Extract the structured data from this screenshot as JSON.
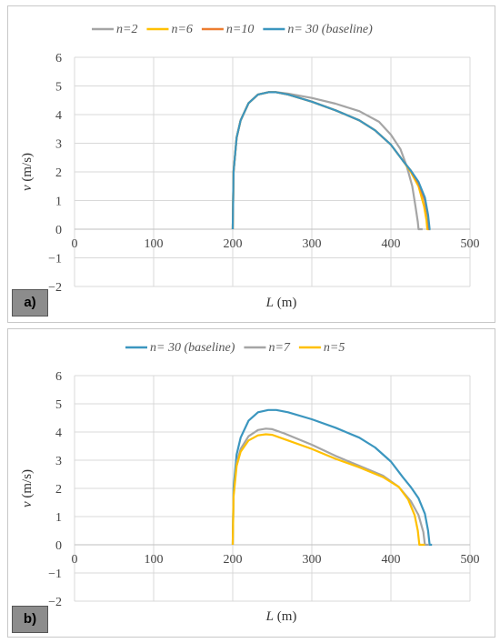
{
  "chart_data": [
    {
      "panel": "a)",
      "type": "line",
      "xlabel": "L (m)",
      "ylabel": "v (m/s)",
      "xlim": [
        0,
        500
      ],
      "ylim": [
        -2,
        6
      ],
      "x_ticks": [
        "0",
        "100",
        "200",
        "300",
        "400",
        "500"
      ],
      "y_ticks": [
        "6",
        "5",
        "4",
        "3",
        "2",
        "1",
        "0",
        "−1",
        "−2"
      ],
      "grid": true,
      "legend_position": "top",
      "series": [
        {
          "name": "n=2",
          "color": "#a5a5a5",
          "points": [
            [
              200,
              0
            ],
            [
              201,
              2.0
            ],
            [
              205,
              3.2
            ],
            [
              210,
              3.8
            ],
            [
              220,
              4.4
            ],
            [
              232,
              4.7
            ],
            [
              245,
              4.78
            ],
            [
              255,
              4.78
            ],
            [
              270,
              4.73
            ],
            [
              300,
              4.58
            ],
            [
              330,
              4.38
            ],
            [
              360,
              4.12
            ],
            [
              385,
              3.75
            ],
            [
              400,
              3.3
            ],
            [
              412,
              2.8
            ],
            [
              420,
              2.2
            ],
            [
              427,
              1.5
            ],
            [
              431,
              0.8
            ],
            [
              434,
              0.25
            ],
            [
              435,
              0
            ],
            [
              440,
              0
            ]
          ]
        },
        {
          "name": "n=6",
          "color": "#ffc000",
          "points": [
            [
              200,
              0
            ],
            [
              201,
              2.0
            ],
            [
              205,
              3.2
            ],
            [
              210,
              3.8
            ],
            [
              220,
              4.4
            ],
            [
              232,
              4.7
            ],
            [
              245,
              4.78
            ],
            [
              255,
              4.78
            ],
            [
              270,
              4.7
            ],
            [
              300,
              4.45
            ],
            [
              330,
              4.15
            ],
            [
              360,
              3.8
            ],
            [
              380,
              3.45
            ],
            [
              400,
              2.95
            ],
            [
              415,
              2.4
            ],
            [
              425,
              2.0
            ],
            [
              435,
              1.5
            ],
            [
              442,
              0.8
            ],
            [
              445,
              0.3
            ],
            [
              446,
              0
            ],
            [
              448,
              0
            ]
          ]
        },
        {
          "name": "n=10",
          "color": "#ed7d31",
          "points": [
            [
              200,
              0
            ],
            [
              201,
              2.0
            ],
            [
              205,
              3.2
            ],
            [
              210,
              3.8
            ],
            [
              220,
              4.4
            ],
            [
              232,
              4.7
            ],
            [
              245,
              4.78
            ],
            [
              255,
              4.78
            ],
            [
              270,
              4.7
            ],
            [
              300,
              4.45
            ],
            [
              330,
              4.15
            ],
            [
              360,
              3.8
            ],
            [
              380,
              3.45
            ],
            [
              400,
              2.95
            ],
            [
              415,
              2.4
            ],
            [
              425,
              2.05
            ],
            [
              435,
              1.6
            ],
            [
              443,
              1.0
            ],
            [
              447,
              0.4
            ],
            [
              448,
              0
            ],
            [
              449,
              0
            ]
          ]
        },
        {
          "name": "n= 30 (baseline)",
          "color": "#3b96bf",
          "points": [
            [
              200,
              0
            ],
            [
              201,
              2.0
            ],
            [
              205,
              3.2
            ],
            [
              210,
              3.8
            ],
            [
              220,
              4.4
            ],
            [
              232,
              4.7
            ],
            [
              245,
              4.78
            ],
            [
              255,
              4.78
            ],
            [
              270,
              4.7
            ],
            [
              300,
              4.45
            ],
            [
              330,
              4.15
            ],
            [
              360,
              3.8
            ],
            [
              380,
              3.45
            ],
            [
              400,
              2.95
            ],
            [
              415,
              2.4
            ],
            [
              425,
              2.05
            ],
            [
              435,
              1.65
            ],
            [
              443,
              1.1
            ],
            [
              447,
              0.5
            ],
            [
              449,
              0
            ],
            [
              450,
              0
            ]
          ]
        }
      ]
    },
    {
      "panel": "b)",
      "type": "line",
      "xlabel": "L (m)",
      "ylabel": "v (m/s)",
      "xlim": [
        0,
        500
      ],
      "ylim": [
        -2,
        6
      ],
      "x_ticks": [
        "0",
        "100",
        "200",
        "300",
        "400",
        "500"
      ],
      "y_ticks": [
        "6",
        "5",
        "4",
        "3",
        "2",
        "1",
        "0",
        "−1",
        "−2"
      ],
      "grid": true,
      "legend_position": "top",
      "series": [
        {
          "name": "n= 30 (baseline)",
          "color": "#3b96bf",
          "points": [
            [
              200,
              0
            ],
            [
              201,
              2.0
            ],
            [
              205,
              3.2
            ],
            [
              210,
              3.8
            ],
            [
              220,
              4.4
            ],
            [
              232,
              4.7
            ],
            [
              245,
              4.78
            ],
            [
              255,
              4.78
            ],
            [
              270,
              4.7
            ],
            [
              300,
              4.45
            ],
            [
              330,
              4.15
            ],
            [
              360,
              3.8
            ],
            [
              380,
              3.45
            ],
            [
              400,
              2.95
            ],
            [
              415,
              2.4
            ],
            [
              425,
              2.05
            ],
            [
              435,
              1.65
            ],
            [
              443,
              1.1
            ],
            [
              447,
              0.5
            ],
            [
              449,
              0
            ],
            [
              452,
              0
            ]
          ]
        },
        {
          "name": "n=7",
          "color": "#a5a5a5",
          "points": [
            [
              200,
              0
            ],
            [
              201,
              1.8
            ],
            [
              205,
              2.9
            ],
            [
              210,
              3.4
            ],
            [
              220,
              3.85
            ],
            [
              232,
              4.07
            ],
            [
              242,
              4.12
            ],
            [
              250,
              4.1
            ],
            [
              265,
              3.95
            ],
            [
              300,
              3.55
            ],
            [
              330,
              3.15
            ],
            [
              360,
              2.8
            ],
            [
              390,
              2.45
            ],
            [
              410,
              2.05
            ],
            [
              425,
              1.55
            ],
            [
              435,
              1.05
            ],
            [
              441,
              0.45
            ],
            [
              443,
              0
            ],
            [
              448,
              0
            ]
          ]
        },
        {
          "name": "n=5",
          "color": "#ffc000",
          "points": [
            [
              200,
              0
            ],
            [
              201,
              1.7
            ],
            [
              205,
              2.8
            ],
            [
              210,
              3.3
            ],
            [
              220,
              3.7
            ],
            [
              232,
              3.88
            ],
            [
              242,
              3.92
            ],
            [
              250,
              3.9
            ],
            [
              265,
              3.75
            ],
            [
              300,
              3.4
            ],
            [
              330,
              3.05
            ],
            [
              360,
              2.75
            ],
            [
              390,
              2.4
            ],
            [
              410,
              2.05
            ],
            [
              422,
              1.6
            ],
            [
              430,
              1.05
            ],
            [
              434,
              0.5
            ],
            [
              436,
              0
            ],
            [
              443,
              0
            ]
          ]
        }
      ]
    }
  ]
}
